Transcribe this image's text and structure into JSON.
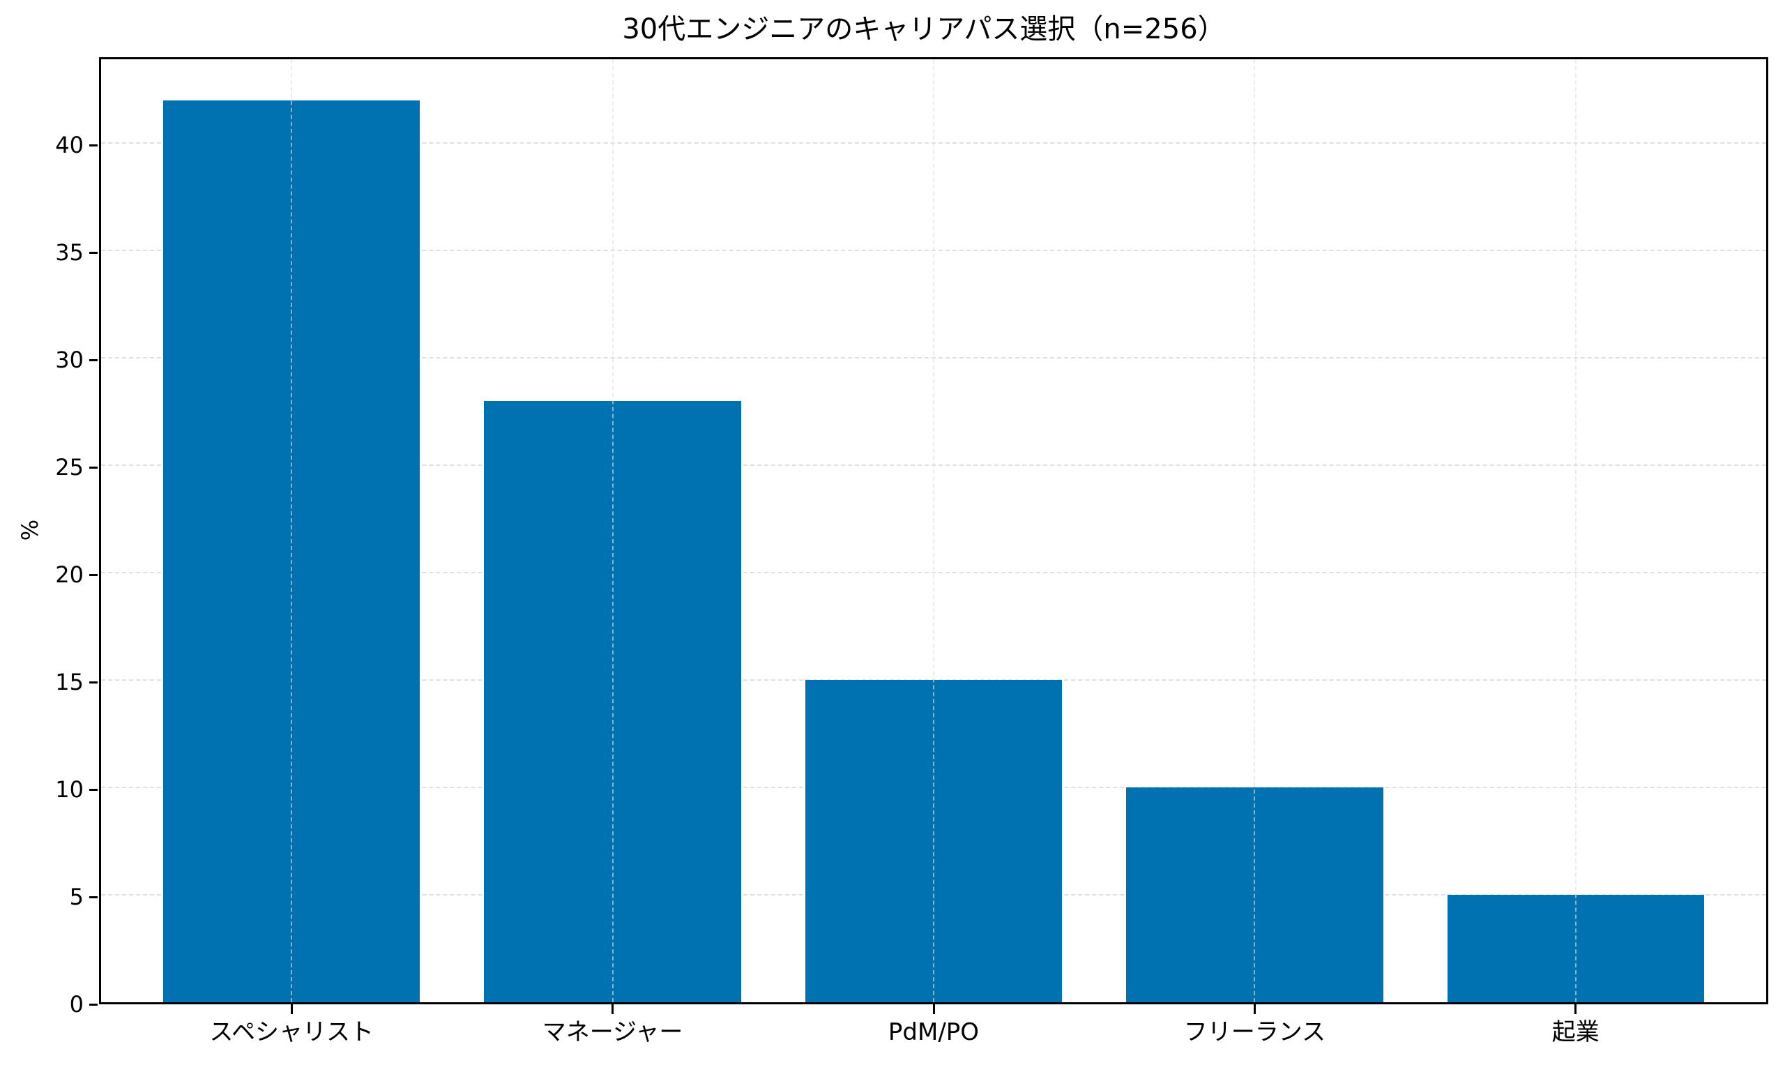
{
  "chart_data": {
    "type": "bar",
    "title": "30代エンジニアのキャリアパス選択（n=256）",
    "xlabel": "",
    "ylabel": "%",
    "categories": [
      "スペシャリスト",
      "マネージャー",
      "PdM/PO",
      "フリーランス",
      "起業"
    ],
    "values": [
      42,
      28,
      15,
      10,
      5
    ],
    "ylim": [
      0,
      44.1
    ],
    "yticks": [
      0,
      5,
      10,
      15,
      20,
      25,
      30,
      35,
      40
    ],
    "grid": {
      "x": true,
      "y": true,
      "style": "dashed",
      "color": "#e0e0e0"
    },
    "bar_color": "#0072B2",
    "legend": null
  },
  "labels": {
    "title": "30代エンジニアのキャリアパス選択（n=256）",
    "ylabel": "%",
    "yticks": [
      "0",
      "5",
      "10",
      "15",
      "20",
      "25",
      "30",
      "35",
      "40"
    ],
    "xticks": [
      "スペシャリスト",
      "マネージャー",
      "PdM/PO",
      "フリーランス",
      "起業"
    ]
  }
}
